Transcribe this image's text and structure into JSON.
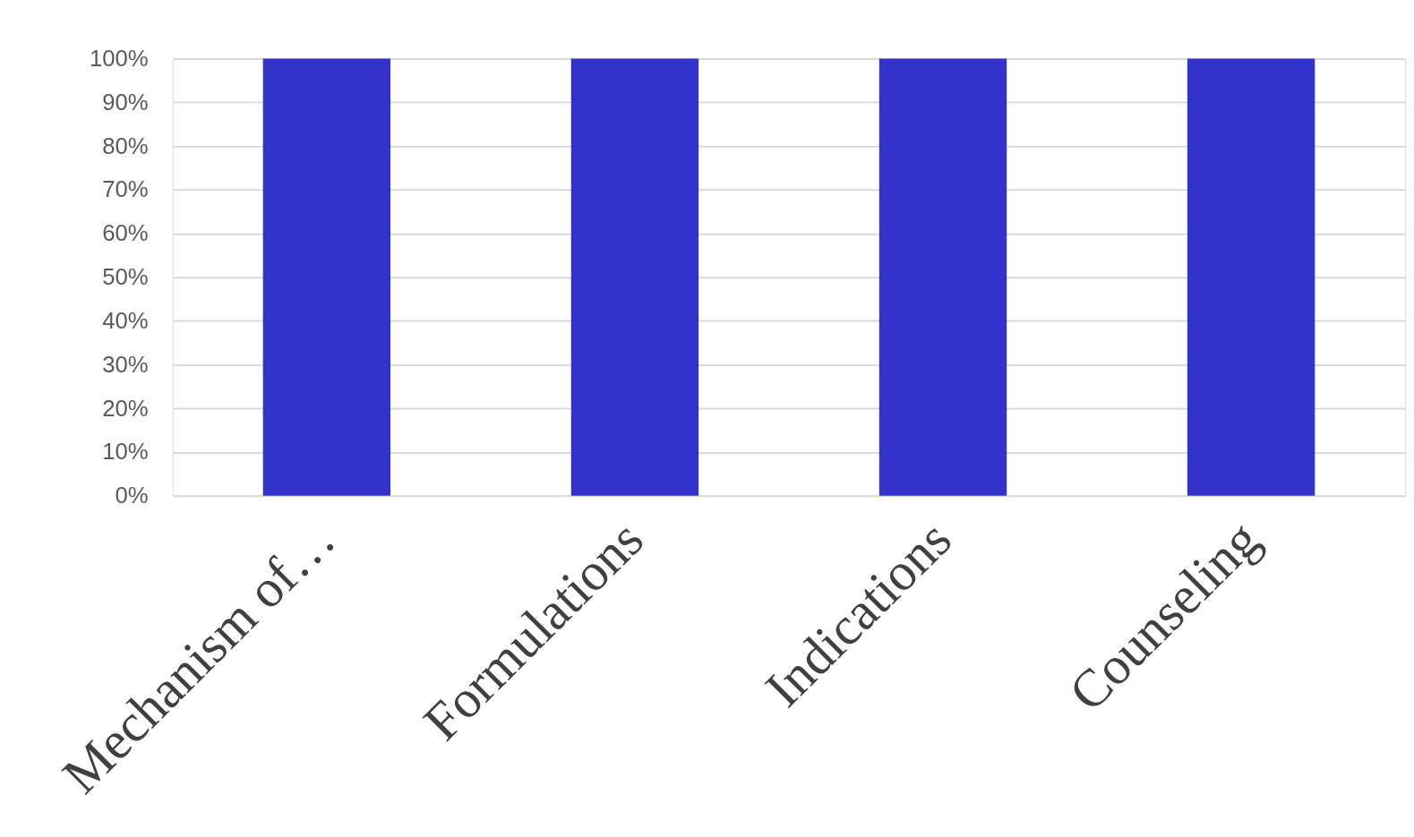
{
  "chart_data": {
    "type": "bar",
    "categories": [
      "Mechanism of…",
      "Formulations",
      "Indications",
      "Counseling"
    ],
    "values": [
      100,
      100,
      100,
      100
    ],
    "color": "#3333cc",
    "ylim": [
      0,
      100
    ],
    "yticks": [
      {
        "value": 0,
        "label": "0%"
      },
      {
        "value": 10,
        "label": "10%"
      },
      {
        "value": 20,
        "label": "20%"
      },
      {
        "value": 30,
        "label": "30%"
      },
      {
        "value": 40,
        "label": "40%"
      },
      {
        "value": 50,
        "label": "50%"
      },
      {
        "value": 60,
        "label": "60%"
      },
      {
        "value": 70,
        "label": "70%"
      },
      {
        "value": 80,
        "label": "80%"
      },
      {
        "value": 90,
        "label": "90%"
      },
      {
        "value": 100,
        "label": "100%"
      }
    ],
    "grid": "y"
  }
}
